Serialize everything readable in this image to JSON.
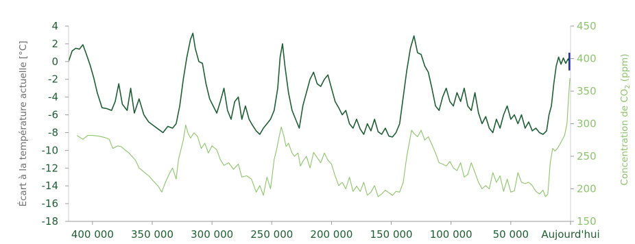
{
  "chart_data": {
    "type": "line",
    "title": "",
    "xlabel": "",
    "x_tick_labels": [
      "400 000",
      "350 000",
      "300 000",
      "250 000",
      "200 000",
      "150 000",
      "100 000",
      "50 000",
      "Aujourd'hui"
    ],
    "x_tick_values": [
      400000,
      350000,
      300000,
      250000,
      200000,
      150000,
      100000,
      50000,
      0
    ],
    "xlim": [
      420000,
      0
    ],
    "ylabel_left": "Écart à la température actuelle [°C]",
    "ylabel_right_prefix": "Concentration de CO",
    "ylabel_right_sub": "2",
    "ylabel_right_suffix": " (ppm)",
    "ylim_left": [
      -18,
      4
    ],
    "ylim_right": [
      150,
      450
    ],
    "y_left_ticks": [
      4,
      2,
      0,
      -2,
      -4,
      -6,
      -8,
      -10,
      -12,
      -14,
      -16,
      -18
    ],
    "y_right_ticks": [
      450,
      400,
      350,
      300,
      250,
      200,
      150
    ],
    "colors": {
      "temperature": "#1d5e32",
      "co2": "#8cc46a",
      "present_marker": "#2233aa"
    },
    "series": [
      {
        "axis": "left",
        "points": [
          [
            420000,
            0
          ],
          [
            417000,
            1.2
          ],
          [
            414000,
            1.5
          ],
          [
            411000,
            1.4
          ],
          [
            408000,
            1.9
          ],
          [
            405000,
            0.8
          ],
          [
            402000,
            -0.4
          ],
          [
            399000,
            -1.8
          ],
          [
            396000,
            -3.5
          ],
          [
            392000,
            -5.2
          ],
          [
            388000,
            -5.3
          ],
          [
            384000,
            -5.5
          ],
          [
            381000,
            -4.5
          ],
          [
            378000,
            -2.5
          ],
          [
            375000,
            -4.8
          ],
          [
            371000,
            -5.5
          ],
          [
            368000,
            -3.0
          ],
          [
            365000,
            -5.8
          ],
          [
            361000,
            -4.2
          ],
          [
            357000,
            -6.0
          ],
          [
            353000,
            -6.8
          ],
          [
            349000,
            -7.2
          ],
          [
            345000,
            -7.6
          ],
          [
            341000,
            -8.0
          ],
          [
            337000,
            -7.3
          ],
          [
            333000,
            -7.5
          ],
          [
            330000,
            -7.0
          ],
          [
            327000,
            -5.0
          ],
          [
            324000,
            -2.0
          ],
          [
            321000,
            0.5
          ],
          [
            318000,
            2.5
          ],
          [
            316000,
            3.2
          ],
          [
            314000,
            1.5
          ],
          [
            311000,
            0.0
          ],
          [
            308000,
            -0.2
          ],
          [
            305000,
            -2.5
          ],
          [
            302000,
            -4.2
          ],
          [
            299000,
            -5.0
          ],
          [
            296000,
            -5.8
          ],
          [
            293000,
            -4.5
          ],
          [
            290000,
            -3.0
          ],
          [
            287000,
            -5.5
          ],
          [
            284000,
            -6.5
          ],
          [
            281000,
            -4.5
          ],
          [
            278000,
            -4.0
          ],
          [
            275000,
            -6.5
          ],
          [
            272000,
            -5.0
          ],
          [
            269000,
            -6.5
          ],
          [
            266000,
            -7.2
          ],
          [
            263000,
            -7.8
          ],
          [
            260000,
            -8.2
          ],
          [
            257000,
            -7.5
          ],
          [
            254000,
            -7.0
          ],
          [
            251000,
            -6.5
          ],
          [
            248000,
            -5.5
          ],
          [
            245000,
            -3.0
          ],
          [
            243000,
            0.5
          ],
          [
            241000,
            2.0
          ],
          [
            239000,
            -0.5
          ],
          [
            236000,
            -3.5
          ],
          [
            233000,
            -5.5
          ],
          [
            230000,
            -6.5
          ],
          [
            227000,
            -7.5
          ],
          [
            224000,
            -5.0
          ],
          [
            221000,
            -3.5
          ],
          [
            218000,
            -2.0
          ],
          [
            215000,
            -1.2
          ],
          [
            212000,
            -2.5
          ],
          [
            209000,
            -2.8
          ],
          [
            206000,
            -2.0
          ],
          [
            203000,
            -1.5
          ],
          [
            200000,
            -3.0
          ],
          [
            197000,
            -4.5
          ],
          [
            194000,
            -5.2
          ],
          [
            191000,
            -6.0
          ],
          [
            188000,
            -5.5
          ],
          [
            185000,
            -7.0
          ],
          [
            182000,
            -7.5
          ],
          [
            179000,
            -6.5
          ],
          [
            176000,
            -7.6
          ],
          [
            173000,
            -8.2
          ],
          [
            170000,
            -7.0
          ],
          [
            167000,
            -7.8
          ],
          [
            164000,
            -6.5
          ],
          [
            161000,
            -7.9
          ],
          [
            158000,
            -8.2
          ],
          [
            155000,
            -7.5
          ],
          [
            152000,
            -8.4
          ],
          [
            149000,
            -8.5
          ],
          [
            146000,
            -8.0
          ],
          [
            143000,
            -7.0
          ],
          [
            140000,
            -4.0
          ],
          [
            137000,
            -1.0
          ],
          [
            134000,
            1.5
          ],
          [
            131000,
            2.9
          ],
          [
            128000,
            1.0
          ],
          [
            125000,
            0.8
          ],
          [
            122000,
            -0.5
          ],
          [
            119000,
            -1.2
          ],
          [
            116000,
            -3.0
          ],
          [
            113000,
            -5.0
          ],
          [
            110000,
            -5.5
          ],
          [
            107000,
            -4.0
          ],
          [
            104000,
            -3.0
          ],
          [
            101000,
            -4.5
          ],
          [
            98000,
            -5.0
          ],
          [
            95000,
            -3.5
          ],
          [
            92000,
            -4.5
          ],
          [
            89000,
            -3.0
          ],
          [
            86000,
            -5.0
          ],
          [
            83000,
            -5.5
          ],
          [
            80000,
            -3.5
          ],
          [
            77000,
            -5.8
          ],
          [
            74000,
            -7.0
          ],
          [
            71000,
            -6.2
          ],
          [
            68000,
            -7.5
          ],
          [
            65000,
            -8.0
          ],
          [
            62000,
            -6.5
          ],
          [
            59000,
            -7.5
          ],
          [
            56000,
            -6.0
          ],
          [
            53000,
            -5.0
          ],
          [
            50000,
            -6.5
          ],
          [
            47000,
            -6.0
          ],
          [
            44000,
            -7.0
          ],
          [
            41000,
            -6.0
          ],
          [
            38000,
            -7.5
          ],
          [
            35000,
            -6.8
          ],
          [
            32000,
            -7.8
          ],
          [
            29000,
            -7.5
          ],
          [
            26000,
            -8.0
          ],
          [
            23000,
            -8.2
          ],
          [
            20000,
            -7.8
          ],
          [
            18000,
            -6.0
          ],
          [
            16000,
            -5.0
          ],
          [
            14000,
            -2.5
          ],
          [
            12000,
            -0.5
          ],
          [
            10000,
            0.5
          ],
          [
            8000,
            -0.3
          ],
          [
            6000,
            0.4
          ],
          [
            4000,
            -0.2
          ],
          [
            2000,
            0.3
          ],
          [
            1000,
            0.0
          ]
        ]
      },
      {
        "axis": "right",
        "points": [
          [
            413000,
            282
          ],
          [
            408000,
            276
          ],
          [
            404000,
            282
          ],
          [
            400000,
            282
          ],
          [
            395000,
            281
          ],
          [
            390000,
            279
          ],
          [
            386000,
            276
          ],
          [
            383000,
            262
          ],
          [
            379000,
            266
          ],
          [
            376000,
            265
          ],
          [
            373000,
            260
          ],
          [
            370000,
            256
          ],
          [
            367000,
            250
          ],
          [
            364000,
            244
          ],
          [
            361000,
            232
          ],
          [
            357000,
            226
          ],
          [
            353000,
            220
          ],
          [
            349000,
            212
          ],
          [
            345000,
            204
          ],
          [
            342000,
            195
          ],
          [
            339000,
            210
          ],
          [
            336000,
            222
          ],
          [
            333000,
            232
          ],
          [
            330000,
            215
          ],
          [
            328000,
            245
          ],
          [
            326000,
            260
          ],
          [
            324000,
            275
          ],
          [
            322000,
            298
          ],
          [
            320000,
            285
          ],
          [
            318000,
            278
          ],
          [
            315000,
            286
          ],
          [
            312000,
            280
          ],
          [
            309000,
            262
          ],
          [
            306000,
            270
          ],
          [
            303000,
            255
          ],
          [
            300000,
            266
          ],
          [
            296000,
            260
          ],
          [
            293000,
            245
          ],
          [
            290000,
            236
          ],
          [
            286000,
            240
          ],
          [
            282000,
            230
          ],
          [
            278000,
            238
          ],
          [
            275000,
            218
          ],
          [
            271000,
            220
          ],
          [
            267000,
            215
          ],
          [
            263000,
            195
          ],
          [
            260000,
            205
          ],
          [
            257000,
            190
          ],
          [
            254000,
            218
          ],
          [
            251000,
            200
          ],
          [
            248000,
            245
          ],
          [
            246000,
            260
          ],
          [
            244000,
            278
          ],
          [
            242000,
            295
          ],
          [
            240000,
            282
          ],
          [
            238000,
            265
          ],
          [
            236000,
            270
          ],
          [
            233000,
            255
          ],
          [
            231000,
            250
          ],
          [
            228000,
            255
          ],
          [
            226000,
            235
          ],
          [
            224000,
            242
          ],
          [
            221000,
            250
          ],
          [
            218000,
            232
          ],
          [
            215000,
            256
          ],
          [
            212000,
            248
          ],
          [
            209000,
            240
          ],
          [
            206000,
            255
          ],
          [
            203000,
            244
          ],
          [
            200000,
            238
          ],
          [
            197000,
            220
          ],
          [
            194000,
            205
          ],
          [
            191000,
            210
          ],
          [
            188000,
            200
          ],
          [
            185000,
            218
          ],
          [
            182000,
            196
          ],
          [
            179000,
            204
          ],
          [
            176000,
            196
          ],
          [
            173000,
            210
          ],
          [
            170000,
            190
          ],
          [
            167000,
            195
          ],
          [
            164000,
            205
          ],
          [
            161000,
            188
          ],
          [
            158000,
            192
          ],
          [
            155000,
            198
          ],
          [
            152000,
            194
          ],
          [
            149000,
            190
          ],
          [
            146000,
            196
          ],
          [
            143000,
            195
          ],
          [
            140000,
            210
          ],
          [
            137000,
            250
          ],
          [
            135000,
            270
          ],
          [
            133000,
            290
          ],
          [
            131000,
            285
          ],
          [
            128000,
            280
          ],
          [
            125000,
            290
          ],
          [
            122000,
            275
          ],
          [
            119000,
            280
          ],
          [
            116000,
            268
          ],
          [
            113000,
            255
          ],
          [
            110000,
            240
          ],
          [
            107000,
            238
          ],
          [
            104000,
            235
          ],
          [
            101000,
            242
          ],
          [
            98000,
            232
          ],
          [
            95000,
            228
          ],
          [
            92000,
            240
          ],
          [
            89000,
            218
          ],
          [
            86000,
            222
          ],
          [
            83000,
            240
          ],
          [
            80000,
            225
          ],
          [
            77000,
            210
          ],
          [
            74000,
            200
          ],
          [
            71000,
            205
          ],
          [
            68000,
            200
          ],
          [
            65000,
            225
          ],
          [
            62000,
            210
          ],
          [
            59000,
            220
          ],
          [
            56000,
            196
          ],
          [
            53000,
            215
          ],
          [
            50000,
            195
          ],
          [
            47000,
            197
          ],
          [
            44000,
            225
          ],
          [
            41000,
            210
          ],
          [
            38000,
            208
          ],
          [
            35000,
            210
          ],
          [
            32000,
            205
          ],
          [
            29000,
            196
          ],
          [
            26000,
            192
          ],
          [
            23000,
            198
          ],
          [
            21000,
            188
          ],
          [
            19000,
            192
          ],
          [
            17000,
            240
          ],
          [
            15000,
            262
          ],
          [
            13000,
            258
          ],
          [
            11000,
            262
          ],
          [
            9000,
            268
          ],
          [
            7000,
            275
          ],
          [
            5000,
            282
          ],
          [
            3000,
            300
          ],
          [
            1500,
            345
          ],
          [
            500,
            370
          ]
        ]
      }
    ]
  }
}
